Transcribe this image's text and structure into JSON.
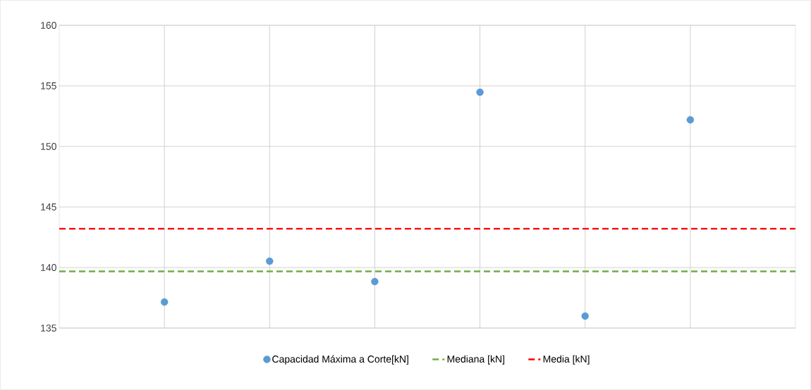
{
  "chart_data": {
    "type": "scatter",
    "categories": [
      null,
      null,
      null,
      null,
      null,
      null
    ],
    "ylim": [
      135,
      160
    ],
    "yticks": [
      135,
      140,
      145,
      150,
      155,
      160
    ],
    "tick_labels": "y",
    "grid": true,
    "legend": "bottom",
    "series": [
      {
        "name": "Capacidad Máxima a Corte[kN]",
        "color": "#5b9bd5",
        "values": [
          137.15,
          140.52,
          138.84,
          154.48,
          135.99,
          152.2
        ]
      }
    ],
    "ref_lines": [
      {
        "axis": "y",
        "value": 139.68,
        "label": "Mediana [kN]",
        "color": "#70ad47",
        "line_style": "dashed"
      },
      {
        "axis": "y",
        "value": 143.2,
        "label": "Media [kN]",
        "color": "#ff0000",
        "line_style": "dashed"
      }
    ]
  }
}
